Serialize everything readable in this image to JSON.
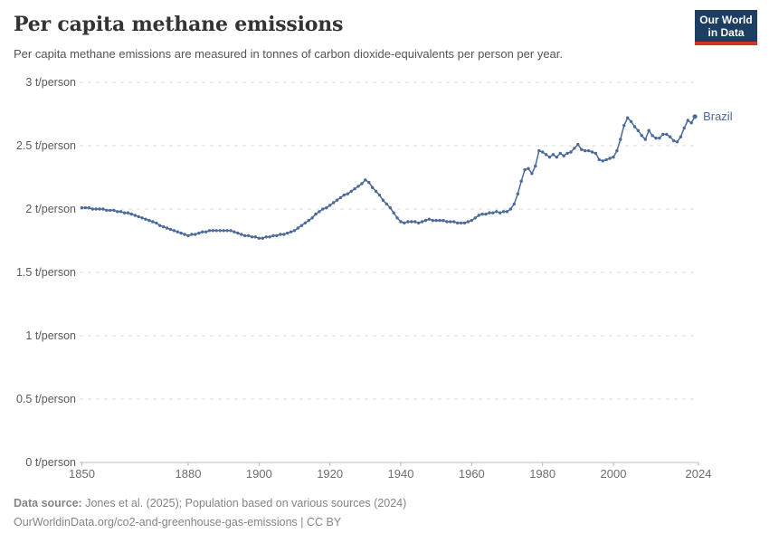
{
  "header": {
    "title": "Per capita methane emissions",
    "subtitle": "Per capita methane emissions are measured in tonnes of carbon dioxide-equivalents per person per year.",
    "logo": {
      "line1": "Our World",
      "line2": "in Data",
      "bg_color": "#1d3d63",
      "accent_color": "#d0342c"
    }
  },
  "chart_data": {
    "type": "line",
    "title": "Per capita methane emissions",
    "unit": "t/person",
    "xlabel": "",
    "ylabel": "",
    "xlim": [
      1850,
      2024
    ],
    "ylim": [
      0,
      3
    ],
    "grid": true,
    "gridline_color": "#dedede",
    "axis_color": "#bbbbbb",
    "x_ticks": [
      1850,
      1880,
      1900,
      1920,
      1940,
      1960,
      1980,
      2000,
      2024
    ],
    "y_ticks": [
      {
        "value": 0,
        "label": "0 t/person"
      },
      {
        "value": 0.5,
        "label": "0.5 t/person"
      },
      {
        "value": 1,
        "label": "1 t/person"
      },
      {
        "value": 1.5,
        "label": "1.5 t/person"
      },
      {
        "value": 2,
        "label": "2 t/person"
      },
      {
        "value": 2.5,
        "label": "2.5 t/person"
      },
      {
        "value": 3,
        "label": "3 t/person"
      }
    ],
    "series": [
      {
        "name": "Brazil",
        "color": "#4c6a9c",
        "x": [
          1850,
          1851,
          1852,
          1853,
          1854,
          1855,
          1856,
          1857,
          1858,
          1859,
          1860,
          1861,
          1862,
          1863,
          1864,
          1865,
          1866,
          1867,
          1868,
          1869,
          1870,
          1871,
          1872,
          1873,
          1874,
          1875,
          1876,
          1877,
          1878,
          1879,
          1880,
          1881,
          1882,
          1883,
          1884,
          1885,
          1886,
          1887,
          1888,
          1889,
          1890,
          1891,
          1892,
          1893,
          1894,
          1895,
          1896,
          1897,
          1898,
          1899,
          1900,
          1901,
          1902,
          1903,
          1904,
          1905,
          1906,
          1907,
          1908,
          1909,
          1910,
          1911,
          1912,
          1913,
          1914,
          1915,
          1916,
          1917,
          1918,
          1919,
          1920,
          1921,
          1922,
          1923,
          1924,
          1925,
          1926,
          1927,
          1928,
          1929,
          1930,
          1931,
          1932,
          1933,
          1934,
          1935,
          1936,
          1937,
          1938,
          1939,
          1940,
          1941,
          1942,
          1943,
          1944,
          1945,
          1946,
          1947,
          1948,
          1949,
          1950,
          1951,
          1952,
          1953,
          1954,
          1955,
          1956,
          1957,
          1958,
          1959,
          1960,
          1961,
          1962,
          1963,
          1964,
          1965,
          1966,
          1967,
          1968,
          1969,
          1970,
          1971,
          1972,
          1973,
          1974,
          1975,
          1976,
          1977,
          1978,
          1979,
          1980,
          1981,
          1982,
          1983,
          1984,
          1985,
          1986,
          1987,
          1988,
          1989,
          1990,
          1991,
          1992,
          1993,
          1994,
          1995,
          1996,
          1997,
          1998,
          1999,
          2000,
          2001,
          2002,
          2003,
          2004,
          2005,
          2006,
          2007,
          2008,
          2009,
          2010,
          2011,
          2012,
          2013,
          2014,
          2015,
          2016,
          2017,
          2018,
          2019,
          2020,
          2021,
          2022,
          2023
        ],
        "values": [
          2.01,
          2.01,
          2.01,
          2.0,
          2.0,
          2.0,
          2.0,
          1.99,
          1.99,
          1.99,
          1.98,
          1.98,
          1.97,
          1.97,
          1.96,
          1.95,
          1.94,
          1.93,
          1.92,
          1.91,
          1.9,
          1.89,
          1.87,
          1.86,
          1.85,
          1.84,
          1.83,
          1.82,
          1.81,
          1.8,
          1.79,
          1.8,
          1.8,
          1.81,
          1.82,
          1.82,
          1.83,
          1.83,
          1.83,
          1.83,
          1.83,
          1.83,
          1.83,
          1.82,
          1.81,
          1.8,
          1.79,
          1.79,
          1.78,
          1.78,
          1.77,
          1.77,
          1.78,
          1.78,
          1.79,
          1.79,
          1.8,
          1.8,
          1.81,
          1.82,
          1.83,
          1.85,
          1.87,
          1.89,
          1.91,
          1.93,
          1.96,
          1.98,
          2.0,
          2.01,
          2.03,
          2.05,
          2.07,
          2.09,
          2.11,
          2.12,
          2.14,
          2.16,
          2.18,
          2.2,
          2.23,
          2.21,
          2.17,
          2.14,
          2.11,
          2.07,
          2.04,
          2.01,
          1.97,
          1.93,
          1.9,
          1.89,
          1.9,
          1.9,
          1.9,
          1.89,
          1.9,
          1.91,
          1.92,
          1.91,
          1.91,
          1.91,
          1.91,
          1.9,
          1.9,
          1.9,
          1.89,
          1.89,
          1.89,
          1.9,
          1.91,
          1.93,
          1.95,
          1.96,
          1.96,
          1.97,
          1.97,
          1.98,
          1.97,
          1.98,
          1.98,
          2.0,
          2.04,
          2.12,
          2.22,
          2.31,
          2.32,
          2.28,
          2.34,
          2.46,
          2.45,
          2.43,
          2.41,
          2.43,
          2.41,
          2.44,
          2.42,
          2.44,
          2.45,
          2.48,
          2.51,
          2.47,
          2.46,
          2.46,
          2.45,
          2.44,
          2.39,
          2.38,
          2.39,
          2.4,
          2.41,
          2.46,
          2.55,
          2.66,
          2.72,
          2.69,
          2.65,
          2.62,
          2.58,
          2.55,
          2.62,
          2.58,
          2.56,
          2.56,
          2.59,
          2.59,
          2.57,
          2.54,
          2.53,
          2.57,
          2.64,
          2.7,
          2.68,
          2.73
        ]
      }
    ],
    "end_label": "Brazil",
    "legend_position": "end-of-line"
  },
  "footer": {
    "datasource_label": "Data source:",
    "datasource_text": " Jones et al. (2025); Population based on various sources (2024)",
    "link_line": "OurWorldinData.org/co2-and-greenhouse-gas-emissions | CC BY"
  }
}
